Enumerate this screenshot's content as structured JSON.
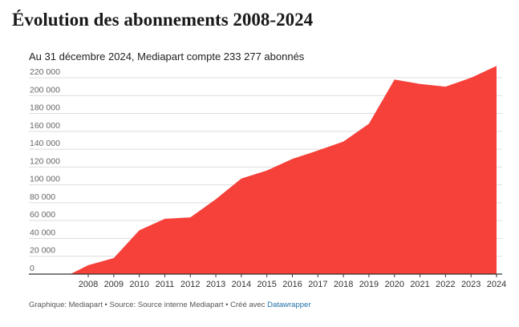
{
  "header": {
    "title": "Évolution des abonnements 2008-2024",
    "subtitle": "Au 31 décembre 2024, Mediapart compte 233 277 abonnés"
  },
  "footer": {
    "text": "Graphique: Mediapart • Source: Source interne Mediapart • Créé avec ",
    "link_label": "Datawrapper"
  },
  "colors": {
    "area": "#f6403a",
    "grid": "#dddddd",
    "baseline": "#333333"
  },
  "chart_data": {
    "type": "area",
    "title": "Évolution des abonnements 2008-2024",
    "subtitle": "Au 31 décembre 2024, Mediapart compte 233 277 abonnés",
    "xlabel": "",
    "ylabel": "",
    "grid": true,
    "ylim": [
      0,
      220000
    ],
    "y_ticks": [
      0,
      20000,
      40000,
      60000,
      80000,
      100000,
      120000,
      140000,
      160000,
      180000,
      200000,
      220000
    ],
    "y_tick_labels": [
      "0",
      "20 000",
      "40 000",
      "60 000",
      "80 000",
      "100 000",
      "120 000",
      "140 000",
      "160 000",
      "180 000",
      "200 000",
      "220 000"
    ],
    "x_tick_labels": [
      "2008",
      "2009",
      "2010",
      "2011",
      "2012",
      "2013",
      "2014",
      "2015",
      "2016",
      "2017",
      "2018",
      "2019",
      "2020",
      "2021",
      "2022",
      "2023",
      "2024"
    ],
    "series": [
      {
        "x": [
          2007.3,
          2008,
          2009,
          2010,
          2011,
          2012,
          2013,
          2014,
          2015,
          2016,
          2017,
          2018,
          2019,
          2020,
          2021,
          2022,
          2023,
          2024
        ],
        "y": [
          0,
          10000,
          18000,
          49000,
          62000,
          63500,
          84000,
          107000,
          116000,
          129000,
          138500,
          148500,
          168500,
          218000,
          213000,
          210000,
          220000,
          233277
        ]
      }
    ]
  }
}
